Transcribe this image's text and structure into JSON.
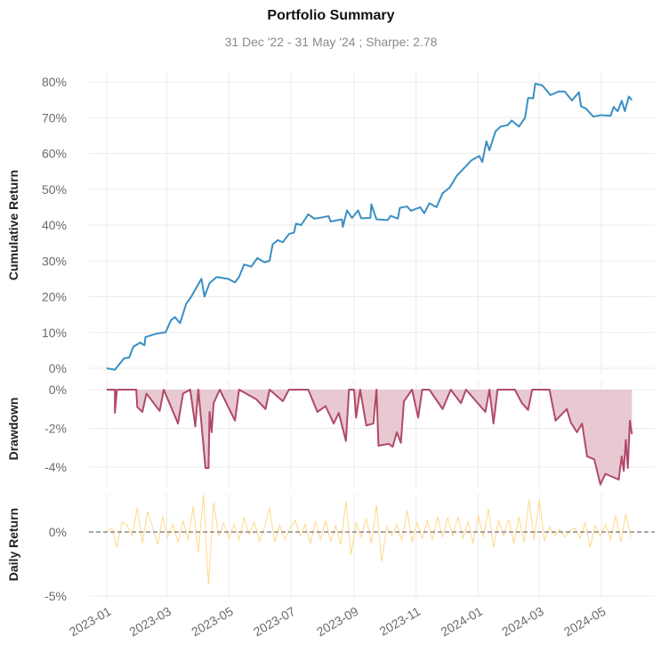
{
  "chart_data": [
    {
      "type": "line",
      "title": "Portfolio Summary",
      "subtitle": "31 Dec '22 - 31 May '24 ;  Sharpe: 2.78",
      "ylabel": "Cumulative Return",
      "ylim": [
        -1,
        82
      ],
      "yticks": [
        "0%",
        "10%",
        "20%",
        "30%",
        "40%",
        "50%",
        "60%",
        "70%",
        "80%"
      ],
      "ytick_values": [
        0,
        10,
        20,
        30,
        40,
        50,
        60,
        70,
        80
      ],
      "x_unit": "days since 2023-01-01",
      "color": "#3a8fc4",
      "points": [
        [
          0,
          0
        ],
        [
          8,
          -0.4
        ],
        [
          17,
          2.8
        ],
        [
          22,
          3
        ],
        [
          26,
          6
        ],
        [
          33,
          7.2
        ],
        [
          37,
          6.4
        ],
        [
          38,
          8.7
        ],
        [
          49,
          9.7
        ],
        [
          58,
          10.1
        ],
        [
          63,
          13.4
        ],
        [
          67,
          14.3
        ],
        [
          72,
          12.6
        ],
        [
          78,
          18
        ],
        [
          83,
          20
        ],
        [
          93,
          25
        ],
        [
          96,
          20
        ],
        [
          101,
          23.8
        ],
        [
          108,
          25.5
        ],
        [
          119,
          25
        ],
        [
          126,
          24
        ],
        [
          130,
          25.5
        ],
        [
          135,
          29
        ],
        [
          142,
          28.4
        ],
        [
          148,
          30.8
        ],
        [
          155,
          29.6
        ],
        [
          160,
          30
        ],
        [
          163,
          34.6
        ],
        [
          168,
          35.8
        ],
        [
          173,
          35.2
        ],
        [
          179,
          37.5
        ],
        [
          184,
          37.9
        ],
        [
          186,
          40.4
        ],
        [
          191,
          40
        ],
        [
          198,
          43
        ],
        [
          204,
          41.8
        ],
        [
          209,
          42
        ],
        [
          218,
          42.5
        ],
        [
          220,
          41
        ],
        [
          231,
          41.6
        ],
        [
          232,
          39.5
        ],
        [
          236,
          44.1
        ],
        [
          241,
          42
        ],
        [
          247,
          44.1
        ],
        [
          250,
          41.9
        ],
        [
          259,
          42
        ],
        [
          260,
          45.8
        ],
        [
          265,
          41.6
        ],
        [
          276,
          41.4
        ],
        [
          279,
          42.6
        ],
        [
          286,
          41.8
        ],
        [
          288,
          44.8
        ],
        [
          295,
          45.2
        ],
        [
          299,
          44
        ],
        [
          308,
          45
        ],
        [
          312,
          43.3
        ],
        [
          317,
          46.1
        ],
        [
          324,
          45
        ],
        [
          330,
          48.9
        ],
        [
          337,
          50.5
        ],
        [
          344,
          53.8
        ],
        [
          351,
          55.9
        ],
        [
          358,
          58
        ],
        [
          366,
          59.3
        ],
        [
          369,
          57.6
        ],
        [
          373,
          63.4
        ],
        [
          376,
          60.9
        ],
        [
          382,
          66.2
        ],
        [
          387,
          67.5
        ],
        [
          394,
          67.9
        ],
        [
          398,
          69.2
        ],
        [
          405,
          67.5
        ],
        [
          411,
          70
        ],
        [
          414,
          75.5
        ],
        [
          419,
          75.4
        ],
        [
          421,
          79.5
        ],
        [
          428,
          79
        ],
        [
          436,
          76.3
        ],
        [
          444,
          77.3
        ],
        [
          450,
          77.3
        ],
        [
          457,
          74.8
        ],
        [
          464,
          77.1
        ],
        [
          466,
          73.2
        ],
        [
          471,
          72.5
        ],
        [
          478,
          70.3
        ],
        [
          486,
          70.7
        ],
        [
          495,
          70.5
        ],
        [
          498,
          73
        ],
        [
          502,
          71.8
        ],
        [
          506,
          74.7
        ],
        [
          509,
          71.8
        ],
        [
          513,
          75.9
        ],
        [
          516,
          74.9
        ]
      ]
    },
    {
      "type": "area",
      "ylabel": "Drawdown",
      "ylim": [
        -5.1,
        0.2
      ],
      "yticks": [
        "0%",
        "-2%",
        "-4%"
      ],
      "ytick_values": [
        0,
        -2,
        -4
      ],
      "color": "#b04a68",
      "fill": "#e6c3cd",
      "points": [
        [
          0,
          0
        ],
        [
          8,
          0
        ],
        [
          8,
          -1.2
        ],
        [
          10,
          0
        ],
        [
          29,
          0
        ],
        [
          30,
          -0.9
        ],
        [
          35,
          -1.15
        ],
        [
          39,
          -0.2
        ],
        [
          52,
          -1.1
        ],
        [
          56,
          0
        ],
        [
          70,
          -1.75
        ],
        [
          75,
          -0.2
        ],
        [
          82,
          0
        ],
        [
          87,
          -1.9
        ],
        [
          90,
          0
        ],
        [
          97,
          -4.05
        ],
        [
          100,
          -4.05
        ],
        [
          101,
          -1.15
        ],
        [
          103,
          -2.2
        ],
        [
          105,
          -0.7
        ],
        [
          111,
          0
        ],
        [
          126,
          -1.6
        ],
        [
          130,
          0
        ],
        [
          147,
          -0.5
        ],
        [
          156,
          -1
        ],
        [
          160,
          0
        ],
        [
          173,
          -0.6
        ],
        [
          179,
          0
        ],
        [
          198,
          0
        ],
        [
          207,
          -1.15
        ],
        [
          215,
          -0.85
        ],
        [
          223,
          -1.75
        ],
        [
          228,
          -1.2
        ],
        [
          235,
          -2.65
        ],
        [
          238,
          0
        ],
        [
          243,
          0
        ],
        [
          245,
          -1.45
        ],
        [
          249,
          0
        ],
        [
          255,
          -1.85
        ],
        [
          262,
          -1.75
        ],
        [
          265,
          0
        ],
        [
          267,
          -2.9
        ],
        [
          277,
          -2.8
        ],
        [
          281,
          -2.95
        ],
        [
          285,
          -2.2
        ],
        [
          289,
          -2.75
        ],
        [
          292,
          -0.6
        ],
        [
          300,
          0
        ],
        [
          306,
          -1.45
        ],
        [
          310,
          0
        ],
        [
          317,
          0
        ],
        [
          330,
          -1
        ],
        [
          338,
          0
        ],
        [
          348,
          -0.7
        ],
        [
          353,
          0
        ],
        [
          372,
          -1.15
        ],
        [
          376,
          0
        ],
        [
          380,
          -1.75
        ],
        [
          384,
          0
        ],
        [
          401,
          0
        ],
        [
          408,
          -0.7
        ],
        [
          414,
          -1.05
        ],
        [
          418,
          0
        ],
        [
          435,
          0
        ],
        [
          441,
          -1.6
        ],
        [
          452,
          -1
        ],
        [
          456,
          -1.7
        ],
        [
          462,
          -2.2
        ],
        [
          467,
          -1.75
        ],
        [
          472,
          -3.45
        ],
        [
          479,
          -3.6
        ],
        [
          485,
          -4.9
        ],
        [
          490,
          -4.35
        ],
        [
          503,
          -4.65
        ],
        [
          506,
          -3.45
        ],
        [
          508,
          -4.2
        ],
        [
          510,
          -2.6
        ],
        [
          512,
          -4.05
        ],
        [
          514,
          -1.6
        ],
        [
          516,
          -2.3
        ]
      ]
    },
    {
      "type": "line",
      "ylabel": "Daily Return",
      "ylim": [
        -5,
        3
      ],
      "yticks": [
        "0%",
        "-5%"
      ],
      "ytick_values": [
        0,
        -5
      ],
      "color": "#ffd98a",
      "x_step_days": 5,
      "values": [
        0.1,
        0.3,
        -1.2,
        0.8,
        0.5,
        -0.3,
        1.9,
        -0.9,
        1.6,
        0.4,
        -1.0,
        1.2,
        -0.4,
        0.6,
        -0.8,
        0.9,
        -0.6,
        2.0,
        -1.6,
        2.9,
        -4.1,
        2.3,
        -0.3,
        0.7,
        -0.5,
        0.6,
        -0.6,
        1.1,
        -0.2,
        0.8,
        -0.7,
        0.4,
        1.9,
        -0.8,
        0.5,
        -0.6,
        0.3,
        0.9,
        -0.3,
        0.6,
        -0.9,
        0.8,
        -0.6,
        0.9,
        -0.7,
        0.5,
        -1.0,
        2.4,
        -1.8,
        0.8,
        -0.4,
        1.1,
        -0.9,
        2.1,
        -2.3,
        0.4,
        -0.3,
        0.6,
        -0.7,
        1.7,
        -0.8,
        0.7,
        -0.5,
        0.9,
        -0.6,
        1.2,
        -0.4,
        1.1,
        -0.3,
        1.2,
        -0.5,
        0.8,
        -0.9,
        1.3,
        -0.4,
        1.8,
        -1.2,
        0.9,
        -0.3,
        1.0,
        -0.9,
        1.2,
        -0.8,
        2.5,
        -0.6,
        2.5,
        -0.7,
        0.4,
        -0.3,
        0.2,
        -0.4,
        0.1,
        0.3,
        -0.5,
        0.7,
        -1.2,
        0.5,
        -0.3,
        0.6,
        -0.6,
        1.3,
        -0.8,
        1.4,
        -0.4
      ]
    }
  ],
  "xaxis": {
    "ticks": [
      "2023-01",
      "2023-03",
      "2023-05",
      "2023-07",
      "2023-09",
      "2023-11",
      "2024-01",
      "2024-03",
      "2024-05"
    ],
    "tick_days": [
      0,
      59,
      120,
      181,
      243,
      304,
      365,
      425,
      486
    ]
  }
}
